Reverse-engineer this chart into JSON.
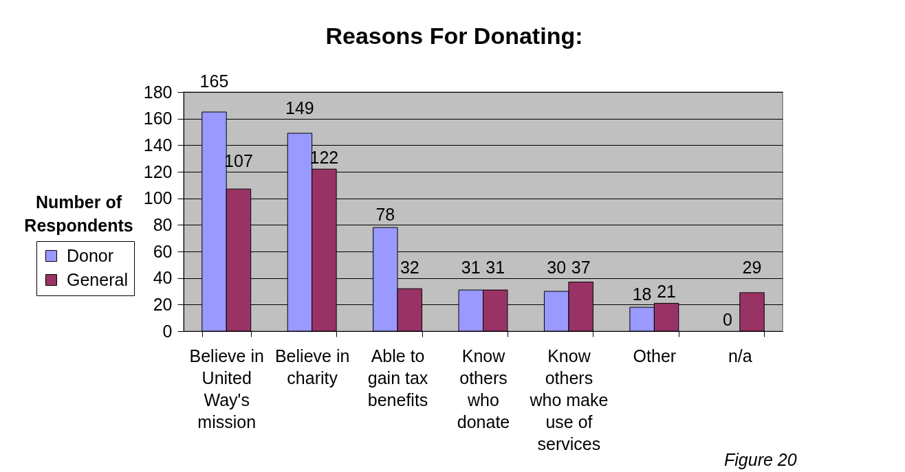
{
  "chart_data": {
    "type": "bar",
    "title": "Reasons For Donating:",
    "ylabel": "Number of Respondents",
    "categories": [
      "Believe in United Way's mission",
      "Believe in charity",
      "Able to gain tax benefits",
      "Know others who donate",
      "Know others who make use of services",
      "Other",
      "n/a"
    ],
    "series": [
      {
        "name": "Donor",
        "color": "#9999ff",
        "values": [
          165,
          149,
          78,
          31,
          30,
          18,
          0
        ]
      },
      {
        "name": "General",
        "color": "#993366",
        "values": [
          107,
          122,
          32,
          31,
          37,
          21,
          29
        ]
      }
    ],
    "ylim": [
      0,
      180
    ],
    "yticks": [
      0,
      20,
      40,
      60,
      80,
      100,
      120,
      140,
      160,
      180
    ],
    "grid": "y",
    "legend": "left",
    "data_labels": true,
    "annotations": [
      "Figure 20"
    ]
  }
}
